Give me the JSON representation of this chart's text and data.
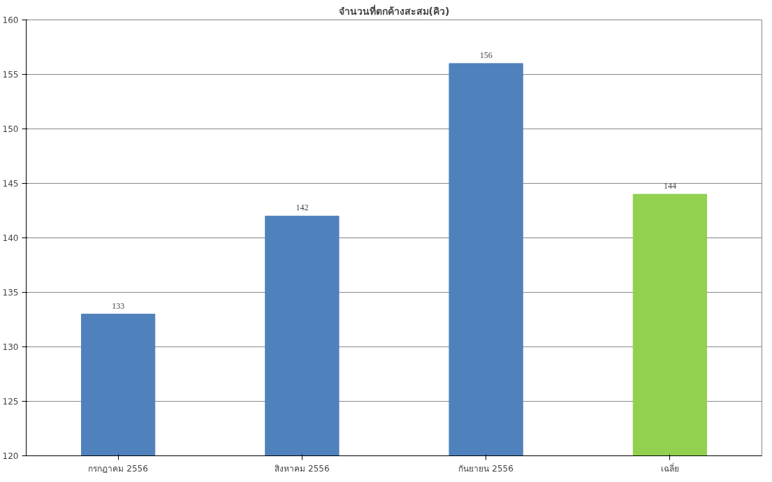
{
  "chart_data": {
    "type": "bar",
    "title": "จำนวนที่ตกค้างสะสม(คิว)",
    "categories": [
      "กรกฎาคม 2556",
      "สิงหาคม 2556",
      "กันยายน 2556",
      "เฉลี่ย"
    ],
    "values": [
      133,
      142,
      156,
      144
    ],
    "colors": [
      "#4f81bd",
      "#4f81bd",
      "#4f81bd",
      "#92d050"
    ],
    "ylim": [
      120,
      160
    ],
    "yticks": [
      120,
      125,
      130,
      135,
      140,
      145,
      150,
      155,
      160
    ],
    "grid": "y",
    "data_labels": true
  }
}
